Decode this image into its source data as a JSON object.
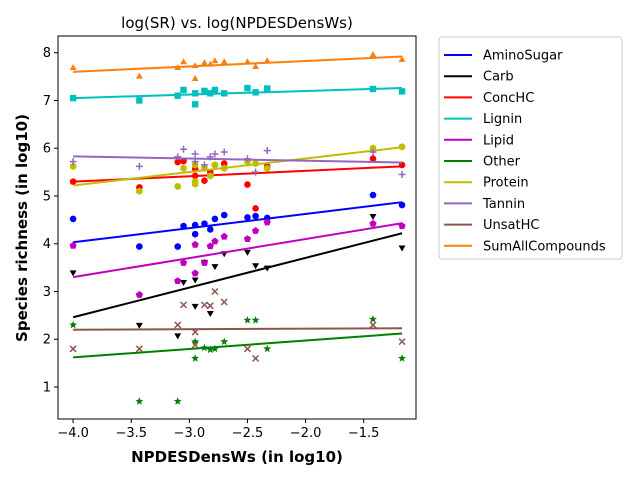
{
  "chart_data": {
    "type": "scatter",
    "title": "log(SR) vs. log(NPDESDensWs)",
    "xlabel": "NPDESDensWs (in log10)",
    "ylabel": "Species richness (in log10)",
    "xlim": [
      -4.13,
      -1.05
    ],
    "ylim": [
      0.33,
      8.35
    ],
    "xticks": [
      -4.0,
      -3.5,
      -3.0,
      -2.5,
      -2.0,
      -1.5
    ],
    "xtick_labels": [
      "−4.0",
      "−3.5",
      "−3.0",
      "−2.5",
      "−2.0",
      "−1.5"
    ],
    "yticks": [
      1,
      2,
      3,
      4,
      5,
      6,
      7,
      8
    ],
    "ytick_labels": [
      "1",
      "2",
      "3",
      "4",
      "5",
      "6",
      "7",
      "8"
    ],
    "grid": false,
    "legend_position": "outside-right",
    "series": [
      {
        "name": "AminoSugar",
        "color": "#0000ff",
        "marker": "circle",
        "points": [
          [
            -4.0,
            4.52
          ],
          [
            -3.43,
            3.94
          ],
          [
            -3.1,
            3.94
          ],
          [
            -3.05,
            4.37
          ],
          [
            -2.95,
            4.39
          ],
          [
            -2.95,
            4.2
          ],
          [
            -2.87,
            4.42
          ],
          [
            -2.82,
            4.3
          ],
          [
            -2.78,
            4.52
          ],
          [
            -2.7,
            4.6
          ],
          [
            -2.5,
            4.55
          ],
          [
            -2.43,
            4.58
          ],
          [
            -2.33,
            4.54
          ],
          [
            -1.42,
            5.02
          ],
          [
            -1.17,
            4.81
          ]
        ],
        "fit": [
          [
            -4.0,
            4.03
          ],
          [
            -1.17,
            4.87
          ]
        ]
      },
      {
        "name": "Carb",
        "color": "#000000",
        "marker": "triangle-down",
        "points": [
          [
            -4.0,
            3.4
          ],
          [
            -3.43,
            2.3
          ],
          [
            -3.1,
            2.08
          ],
          [
            -3.05,
            3.2
          ],
          [
            -2.95,
            2.7
          ],
          [
            -2.95,
            3.25
          ],
          [
            -2.87,
            3.62
          ],
          [
            -2.82,
            2.55
          ],
          [
            -2.78,
            3.53
          ],
          [
            -2.7,
            3.8
          ],
          [
            -2.5,
            3.83
          ],
          [
            -2.43,
            3.55
          ],
          [
            -2.33,
            3.5
          ],
          [
            -1.42,
            4.58
          ],
          [
            -1.17,
            3.92
          ]
        ],
        "fit": [
          [
            -4.0,
            2.46
          ],
          [
            -1.17,
            4.22
          ]
        ]
      },
      {
        "name": "ConcHC",
        "color": "#ff0000",
        "marker": "circle",
        "points": [
          [
            -4.0,
            5.3
          ],
          [
            -3.43,
            5.18
          ],
          [
            -3.1,
            5.71
          ],
          [
            -3.05,
            5.73
          ],
          [
            -2.95,
            5.42
          ],
          [
            -2.95,
            5.56
          ],
          [
            -2.87,
            5.32
          ],
          [
            -2.82,
            5.5
          ],
          [
            -2.78,
            5.65
          ],
          [
            -2.7,
            5.68
          ],
          [
            -2.5,
            5.24
          ],
          [
            -2.43,
            4.74
          ],
          [
            -2.33,
            5.62
          ],
          [
            -1.42,
            5.78
          ],
          [
            -1.17,
            5.65
          ]
        ],
        "fit": [
          [
            -4.0,
            5.3
          ],
          [
            -1.17,
            5.62
          ]
        ]
      },
      {
        "name": "Lignin",
        "color": "#00bfbf",
        "marker": "square",
        "points": [
          [
            -4.0,
            7.05
          ],
          [
            -3.43,
            7.0
          ],
          [
            -3.1,
            7.1
          ],
          [
            -3.05,
            7.22
          ],
          [
            -2.95,
            6.92
          ],
          [
            -2.95,
            7.15
          ],
          [
            -2.87,
            7.2
          ],
          [
            -2.82,
            7.15
          ],
          [
            -2.78,
            7.22
          ],
          [
            -2.7,
            7.15
          ],
          [
            -2.5,
            7.26
          ],
          [
            -2.43,
            7.17
          ],
          [
            -2.33,
            7.25
          ],
          [
            -1.42,
            7.24
          ],
          [
            -1.17,
            7.19
          ]
        ],
        "fit": [
          [
            -4.0,
            7.05
          ],
          [
            -1.17,
            7.26
          ]
        ]
      },
      {
        "name": "Lipid",
        "color": "#bf00bf",
        "marker": "pentagon",
        "points": [
          [
            -4.0,
            3.96
          ],
          [
            -3.43,
            2.93
          ],
          [
            -3.1,
            3.22
          ],
          [
            -3.05,
            3.6
          ],
          [
            -2.95,
            3.38
          ],
          [
            -2.95,
            3.98
          ],
          [
            -2.87,
            3.6
          ],
          [
            -2.82,
            3.95
          ],
          [
            -2.78,
            4.05
          ],
          [
            -2.7,
            4.15
          ],
          [
            -2.5,
            4.1
          ],
          [
            -2.43,
            4.27
          ],
          [
            -2.33,
            4.45
          ],
          [
            -1.42,
            4.42
          ],
          [
            -1.17,
            4.37
          ]
        ],
        "fit": [
          [
            -4.0,
            3.3
          ],
          [
            -1.17,
            4.43
          ]
        ]
      },
      {
        "name": "Other",
        "color": "#008000",
        "marker": "star",
        "points": [
          [
            -4.0,
            2.3
          ],
          [
            -3.43,
            0.7
          ],
          [
            -3.1,
            0.7
          ],
          [
            -2.95,
            1.6
          ],
          [
            -2.95,
            1.95
          ],
          [
            -2.87,
            1.82
          ],
          [
            -2.82,
            1.78
          ],
          [
            -2.78,
            1.8
          ],
          [
            -2.7,
            1.95
          ],
          [
            -2.5,
            2.4
          ],
          [
            -2.43,
            2.4
          ],
          [
            -2.33,
            1.8
          ],
          [
            -1.42,
            2.42
          ],
          [
            -1.17,
            1.6
          ]
        ],
        "fit": [
          [
            -4.0,
            1.62
          ],
          [
            -1.17,
            2.12
          ]
        ]
      },
      {
        "name": "Protein",
        "color": "#bfbf00",
        "marker": "hexagon",
        "points": [
          [
            -4.0,
            5.62
          ],
          [
            -3.43,
            5.1
          ],
          [
            -3.1,
            5.2
          ],
          [
            -3.05,
            5.58
          ],
          [
            -2.95,
            5.25
          ],
          [
            -2.95,
            5.3
          ],
          [
            -2.95,
            5.65
          ],
          [
            -2.87,
            5.58
          ],
          [
            -2.82,
            5.42
          ],
          [
            -2.78,
            5.65
          ],
          [
            -2.7,
            5.58
          ],
          [
            -2.5,
            5.72
          ],
          [
            -2.43,
            5.68
          ],
          [
            -2.33,
            5.58
          ],
          [
            -1.42,
            6.0
          ],
          [
            -1.17,
            6.03
          ]
        ],
        "fit": [
          [
            -4.0,
            5.22
          ],
          [
            -1.17,
            6.02
          ]
        ]
      },
      {
        "name": "Tannin",
        "color": "#9467bd",
        "marker": "plus",
        "points": [
          [
            -4.0,
            5.72
          ],
          [
            -3.43,
            5.62
          ],
          [
            -3.1,
            5.82
          ],
          [
            -3.05,
            5.98
          ],
          [
            -2.95,
            5.72
          ],
          [
            -2.95,
            5.88
          ],
          [
            -2.87,
            5.65
          ],
          [
            -2.82,
            5.82
          ],
          [
            -2.78,
            5.88
          ],
          [
            -2.7,
            5.92
          ],
          [
            -2.5,
            5.78
          ],
          [
            -2.43,
            5.5
          ],
          [
            -2.33,
            5.95
          ],
          [
            -1.42,
            5.92
          ],
          [
            -1.17,
            5.45
          ]
        ],
        "fit": [
          [
            -4.0,
            5.83
          ],
          [
            -1.17,
            5.7
          ]
        ]
      },
      {
        "name": "UnsatHC",
        "color": "#8c564b",
        "marker": "x",
        "points": [
          [
            -4.0,
            1.8
          ],
          [
            -3.43,
            1.8
          ],
          [
            -3.1,
            2.3
          ],
          [
            -3.05,
            2.72
          ],
          [
            -2.95,
            2.15
          ],
          [
            -2.95,
            1.88
          ],
          [
            -2.87,
            2.72
          ],
          [
            -2.82,
            2.7
          ],
          [
            -2.78,
            3.0
          ],
          [
            -2.7,
            2.78
          ],
          [
            -2.5,
            1.8
          ],
          [
            -2.43,
            1.6
          ],
          [
            -1.42,
            2.3
          ],
          [
            -1.17,
            1.95
          ]
        ],
        "fit": [
          [
            -4.0,
            2.2
          ],
          [
            -1.17,
            2.23
          ]
        ]
      },
      {
        "name": "SumAllCompounds",
        "color": "#ff7f0e",
        "marker": "triangle-up",
        "points": [
          [
            -4.0,
            7.68
          ],
          [
            -3.43,
            7.5
          ],
          [
            -3.1,
            7.68
          ],
          [
            -3.05,
            7.8
          ],
          [
            -2.95,
            7.45
          ],
          [
            -2.95,
            7.72
          ],
          [
            -2.87,
            7.78
          ],
          [
            -2.82,
            7.75
          ],
          [
            -2.78,
            7.82
          ],
          [
            -2.7,
            7.8
          ],
          [
            -2.5,
            7.8
          ],
          [
            -2.43,
            7.7
          ],
          [
            -2.33,
            7.82
          ],
          [
            -1.42,
            7.95
          ],
          [
            -1.17,
            7.85
          ]
        ],
        "fit": [
          [
            -4.0,
            7.6
          ],
          [
            -1.17,
            7.92
          ]
        ]
      }
    ]
  }
}
